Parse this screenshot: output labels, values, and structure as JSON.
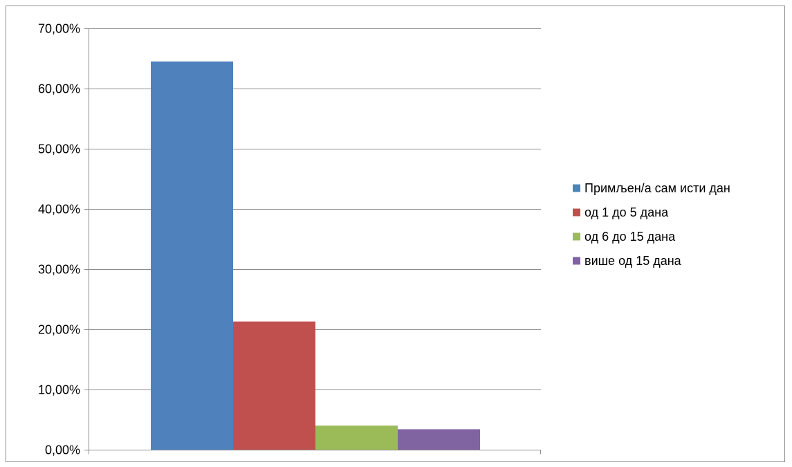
{
  "chart_data": {
    "type": "bar",
    "title": "",
    "xlabel": "",
    "ylabel": "",
    "ylim": [
      0,
      70
    ],
    "ytick_values": [
      0,
      10,
      20,
      30,
      40,
      50,
      60,
      70
    ],
    "ytick_labels": [
      "0,00%",
      "10,00%",
      "20,00%",
      "30,00%",
      "40,00%",
      "50,00%",
      "60,00%",
      "70,00%"
    ],
    "grid": true,
    "legend_position": "right",
    "series": [
      {
        "name": "Примљен/а сам исти дан",
        "value": 64.5,
        "color": "#4f81bd"
      },
      {
        "name": "од 1 до 5 дана",
        "value": 21.3,
        "color": "#c0504d"
      },
      {
        "name": "од 6 до 15 дана",
        "value": 4.0,
        "color": "#9bbb59"
      },
      {
        "name": "више од 15 дана",
        "value": 3.4,
        "color": "#8064a2"
      }
    ]
  }
}
